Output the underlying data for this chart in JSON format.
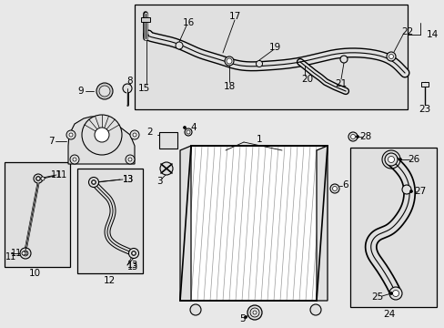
{
  "bg_color": "#e8e8e8",
  "white": "#ffffff",
  "black": "#000000",
  "gray_fill": "#cccccc",
  "light_gray": "#e0e0e0",
  "fig_width": 4.89,
  "fig_height": 3.6,
  "dpi": 100
}
